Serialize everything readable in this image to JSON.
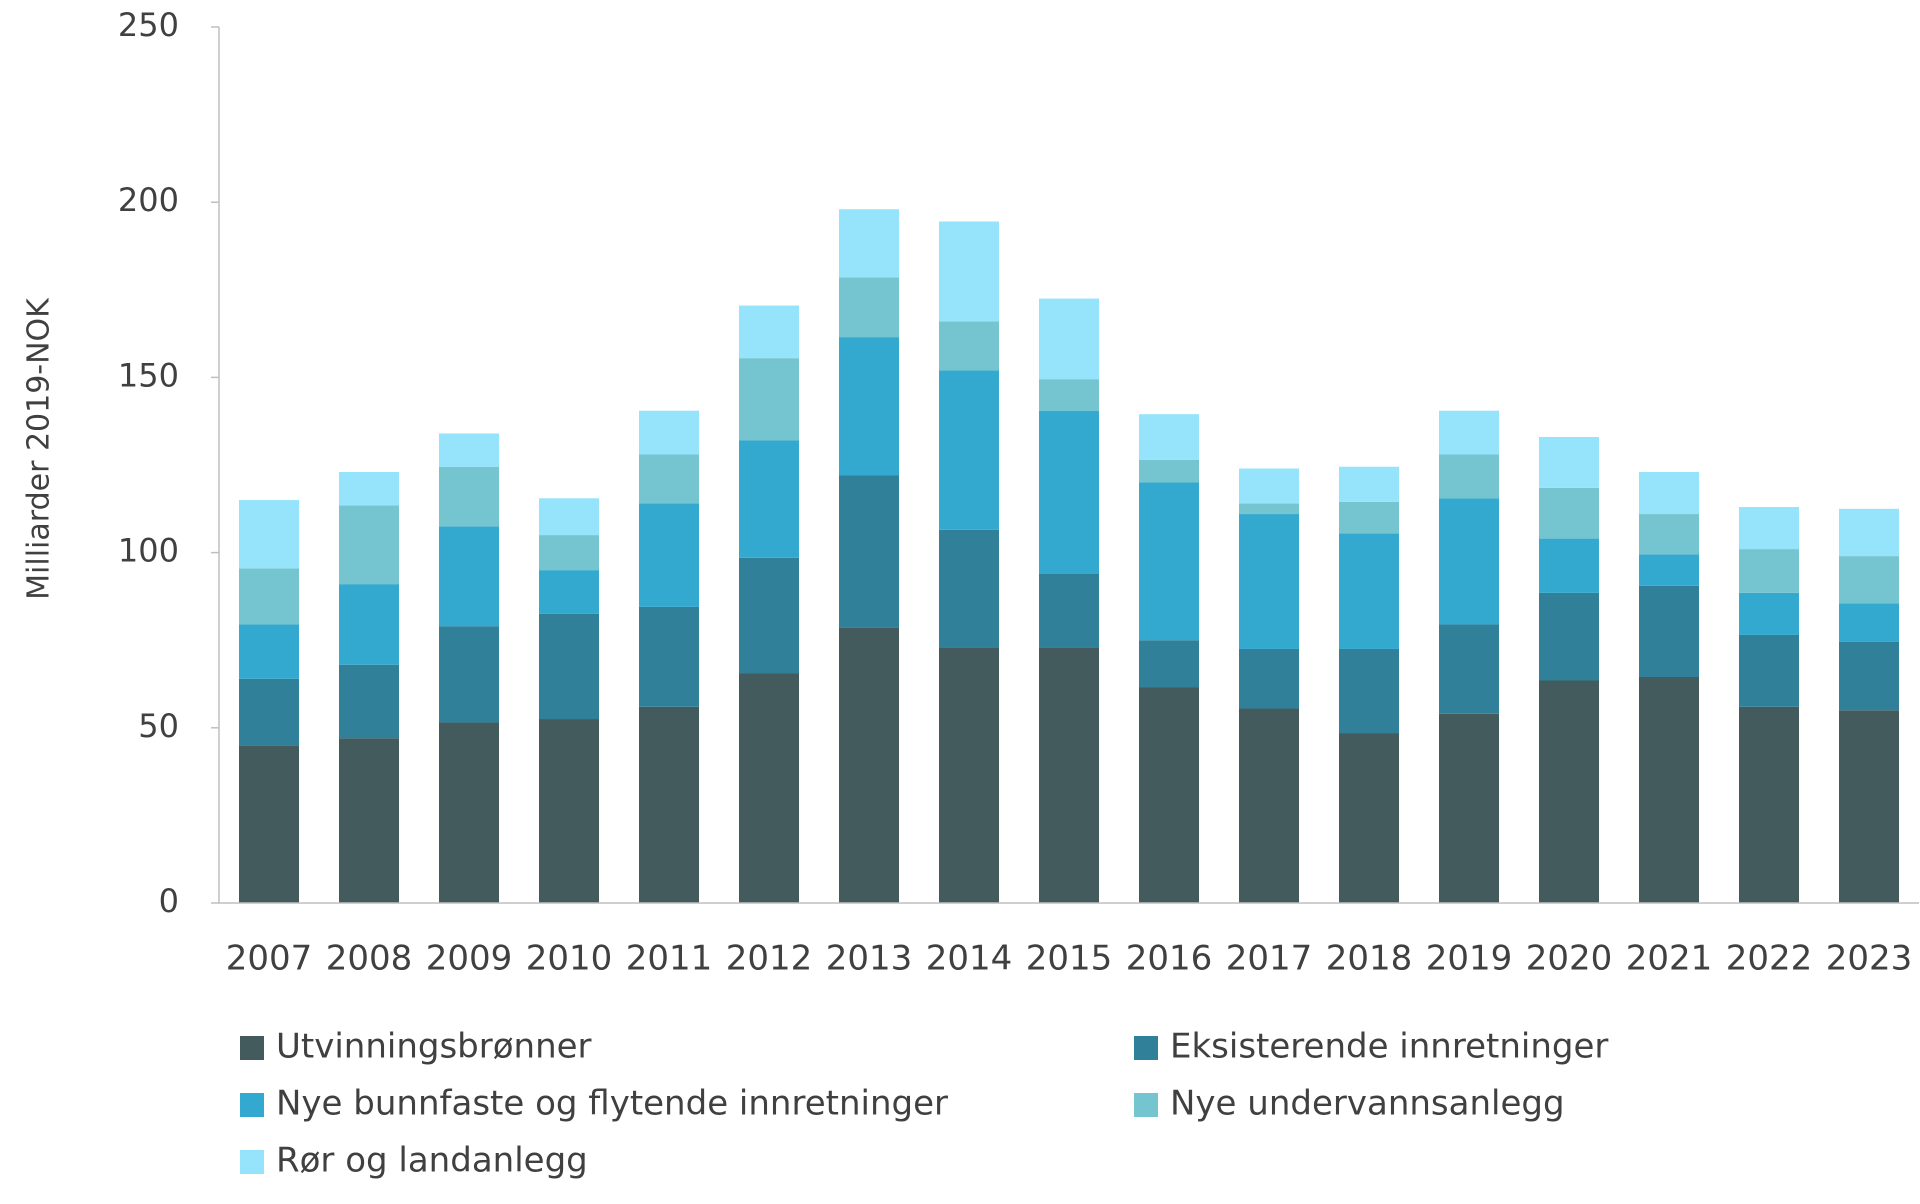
{
  "chart_data": {
    "type": "stacked-bar",
    "y_label": "Milliarder 2019-NOK",
    "categories": [
      "2007",
      "2008",
      "2009",
      "2010",
      "2011",
      "2012",
      "2013",
      "2014",
      "2015",
      "2016",
      "2017",
      "2018",
      "2019",
      "2020",
      "2021",
      "2022",
      "2023"
    ],
    "series": [
      {
        "name": "Utvinningsbrønner",
        "color": "#435b5c",
        "values": [
          45,
          47,
          51.5,
          52.5,
          56,
          65.5,
          78.5,
          73,
          73,
          61.5,
          55.5,
          48.5,
          54,
          63.5,
          64.5,
          56,
          55
        ]
      },
      {
        "name": "Eksisterende innretninger",
        "color": "#31809a",
        "values": [
          19,
          21,
          27.5,
          30,
          28.5,
          33,
          43.5,
          33.5,
          21,
          13.5,
          17,
          24,
          25.5,
          25,
          26,
          20.5,
          19.5
        ]
      },
      {
        "name": "Nye bunnfaste og flytende innretninger",
        "color": "#33a9cf",
        "values": [
          15.5,
          23,
          28.5,
          12.5,
          29.5,
          33.5,
          39.5,
          45.5,
          46.5,
          45,
          38.5,
          33,
          36,
          15.5,
          9,
          12,
          11
        ]
      },
      {
        "name": "Nye undervannsanlegg",
        "color": "#75c5d0",
        "values": [
          16,
          22.5,
          17,
          10,
          14,
          23.5,
          17,
          14,
          9,
          6.5,
          3,
          9,
          12.5,
          14.5,
          11.5,
          12.5,
          13.5
        ]
      },
      {
        "name": "Rør og landanlegg",
        "color": "#96e4fb",
        "values": [
          19.5,
          9.5,
          9.5,
          10.5,
          12.5,
          15,
          19.5,
          28.5,
          23,
          13,
          10,
          10,
          12.5,
          14.5,
          12,
          12,
          13.5
        ]
      }
    ],
    "ylim": [
      0,
      250
    ],
    "yticks": [
      0,
      50,
      100,
      150,
      200,
      250
    ],
    "grid": false
  }
}
